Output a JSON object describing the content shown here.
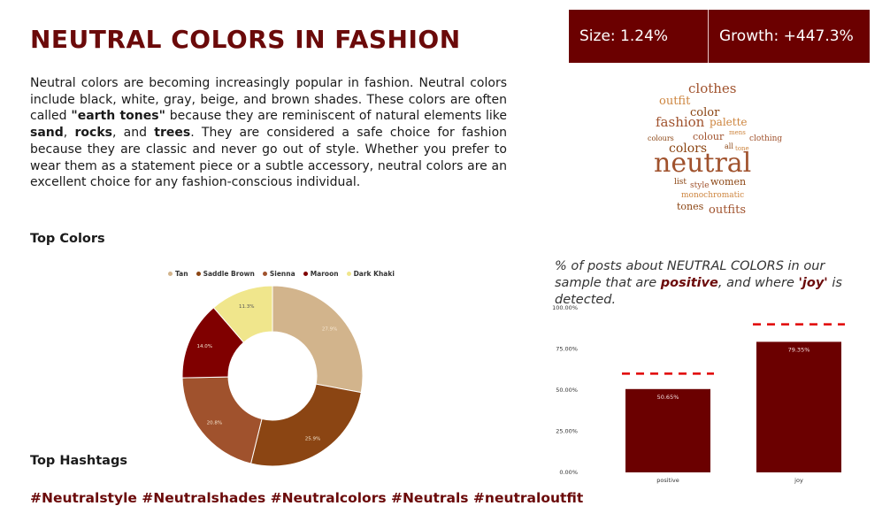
{
  "title": "NEUTRAL COLORS IN FASHION",
  "intro": {
    "p1": "Neutral colors are becoming increasingly popular in fashion. Neutral colors include black, white, gray, beige, and brown shades. These colors are often called ",
    "b1": "\"earth tones\"",
    "p2": " because they are reminiscent of natural elements like ",
    "b2": "sand",
    "p3": ", ",
    "b3": "rocks",
    "p4": ", and ",
    "b4": "trees",
    "p5": ". They are considered a safe choice for fashion because they are classic and never go out of style. Whether you prefer to wear them as a statement piece or a subtle accessory, neutral colors are an excellent choice for any fashion-conscious individual."
  },
  "stats": {
    "size": "Size: 1.24%",
    "growth": "Growth: +447.3%"
  },
  "sections": {
    "top_colors": "Top Colors",
    "top_hashtags": "Top Hashtags"
  },
  "hashtags": "#Neutralstyle #Neutralshades #Neutralcolors #Neutrals #neutraloutfit",
  "wordcloud": [
    {
      "text": "clothes",
      "color": "#a0522d"
    },
    {
      "text": "outfit",
      "color": "#cd853f"
    },
    {
      "text": "color",
      "color": "#8b4513"
    },
    {
      "text": "fashion",
      "color": "#a0522d"
    },
    {
      "text": "palette",
      "color": "#cd853f"
    },
    {
      "text": "colours",
      "color": "#8b4513"
    },
    {
      "text": "colour",
      "color": "#a0522d"
    },
    {
      "text": "mens",
      "color": "#cd853f"
    },
    {
      "text": "clothing",
      "color": "#a0522d"
    },
    {
      "text": "colors",
      "color": "#8b4513"
    },
    {
      "text": "all",
      "color": "#8b4513"
    },
    {
      "text": "tone",
      "color": "#cd853f"
    },
    {
      "text": "neutral",
      "color": "#a0522d"
    },
    {
      "text": "list",
      "color": "#8b4513"
    },
    {
      "text": "style",
      "color": "#a0522d"
    },
    {
      "text": "women",
      "color": "#8b4513"
    },
    {
      "text": "monochromatic",
      "color": "#cd853f"
    },
    {
      "text": "tones",
      "color": "#8b4513"
    },
    {
      "text": "outfits",
      "color": "#a0522d"
    }
  ],
  "caption": {
    "t1": "% of posts about NEUTRAL COLORS in our sample that are ",
    "h1": "positive",
    "t2": ", and where ",
    "h2": "'joy'",
    "t3": " is detected."
  },
  "chart_data": [
    {
      "type": "pie",
      "title": "",
      "categories": [
        "Tan",
        "Saddle Brown",
        "Sienna",
        "Maroon",
        "Dark Khaki"
      ],
      "values": [
        27.9,
        25.9,
        20.8,
        14.0,
        11.3
      ],
      "labels": [
        "27.9%",
        "25.9%",
        "20.8%",
        "14.0%",
        "11.3%"
      ],
      "colors": [
        "#d2b48c",
        "#8b4513",
        "#a0522d",
        "#800000",
        "#f0e68c"
      ],
      "legend": "top"
    },
    {
      "type": "bar",
      "title": "",
      "categories": [
        "positive",
        "joy"
      ],
      "values": [
        50.65,
        79.35
      ],
      "labels": [
        "50.65%",
        "79.35%"
      ],
      "benchmarks": [
        60,
        90
      ],
      "ylim": [
        0,
        100
      ],
      "yticks": [
        "0.00%",
        "25.00%",
        "50.00%",
        "75.00%",
        "100.00%"
      ],
      "bar_color": "#6b0000",
      "benchmark_color": "#e00000",
      "grid": false
    }
  ]
}
